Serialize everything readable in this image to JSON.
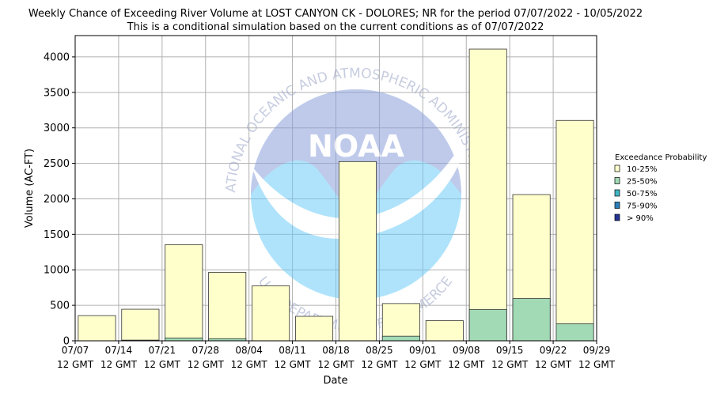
{
  "chart_data": {
    "type": "bar",
    "title": "Weekly Chance of Exceeding River Volume at LOST CANYON CK - DOLORES; NR for the period 07/07/2022 - 10/05/2022",
    "subtitle": "This is a conditional simulation based on the current conditions as of 07/07/2022",
    "xlabel": "Date",
    "ylabel": "Volume (AC-FT)",
    "ylim": [
      0,
      4300
    ],
    "yticks": [
      0,
      500,
      1000,
      1500,
      2000,
      2500,
      3000,
      3500,
      4000
    ],
    "xticks": [
      {
        "date": "07/07",
        "time": "12 GMT"
      },
      {
        "date": "07/14",
        "time": "12 GMT"
      },
      {
        "date": "07/21",
        "time": "12 GMT"
      },
      {
        "date": "07/28",
        "time": "12 GMT"
      },
      {
        "date": "08/04",
        "time": "12 GMT"
      },
      {
        "date": "08/11",
        "time": "12 GMT"
      },
      {
        "date": "08/18",
        "time": "12 GMT"
      },
      {
        "date": "08/25",
        "time": "12 GMT"
      },
      {
        "date": "09/01",
        "time": "12 GMT"
      },
      {
        "date": "09/08",
        "time": "12 GMT"
      },
      {
        "date": "09/15",
        "time": "12 GMT"
      },
      {
        "date": "09/22",
        "time": "12 GMT"
      },
      {
        "date": "09/29",
        "time": "12 GMT"
      }
    ],
    "grid": true,
    "legend_title": "Exceedance Probability",
    "legend_position": "right",
    "series": [
      {
        "name": "10-25%",
        "color": "#ffffcc",
        "values": [
          355,
          445,
          1355,
          965,
          775,
          345,
          2525,
          525,
          285,
          4110,
          2060,
          3105
        ]
      },
      {
        "name": "25-50%",
        "color": "#a1dab4",
        "values": [
          0,
          10,
          40,
          30,
          0,
          0,
          0,
          65,
          0,
          440,
          595,
          240
        ]
      },
      {
        "name": "50-75%",
        "color": "#41b6c4",
        "values": [
          0,
          0,
          0,
          0,
          0,
          0,
          0,
          0,
          0,
          0,
          0,
          0
        ]
      },
      {
        "name": "75-90%",
        "color": "#2c7fb8",
        "values": [
          0,
          0,
          0,
          0,
          0,
          0,
          0,
          0,
          0,
          0,
          0,
          0
        ]
      },
      {
        "name": "> 90%",
        "color": "#253494",
        "values": [
          0,
          0,
          0,
          0,
          0,
          0,
          0,
          0,
          0,
          0,
          0,
          0
        ]
      }
    ]
  },
  "watermark": {
    "logo_text": "NOAA",
    "ring_top": "NATIONAL OCEANIC AND ATMOSPHERIC ADMINISTRATION",
    "ring_bottom": "U.S. DEPARTMENT OF COMMERCE"
  }
}
